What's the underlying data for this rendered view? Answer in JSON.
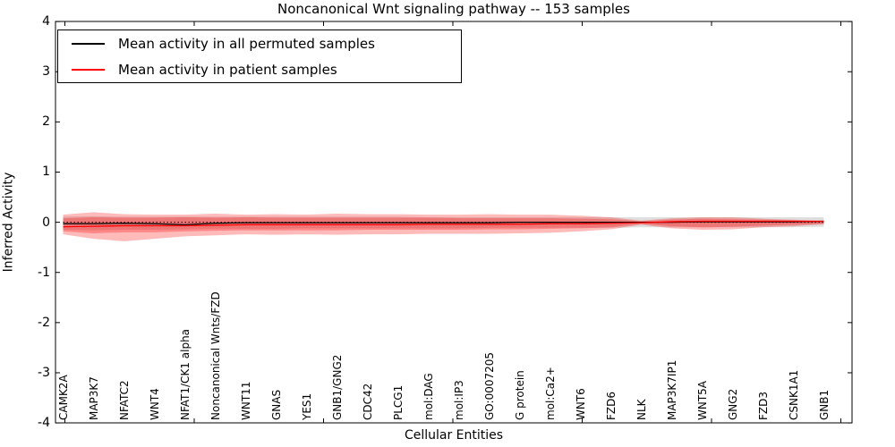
{
  "title": "Noncanonical Wnt signaling pathway -- 153 samples",
  "legend": {
    "items": [
      {
        "label": "Mean activity in all permuted samples",
        "color": "#000000"
      },
      {
        "label": "Mean activity in patient samples",
        "color": "#ff0000"
      }
    ]
  },
  "colors": {
    "background": "#ffffff",
    "axis": "#000000",
    "permuted_line": "#000000",
    "patient_line": "#ff0000",
    "permuted_band": "#808080",
    "patient_band": "#ff0000"
  },
  "chart_data": {
    "type": "line",
    "title": "Noncanonical Wnt signaling pathway -- 153 samples",
    "xlabel": "Cellular Entities",
    "ylabel": "Inferred Activity",
    "ylim": [
      -4,
      4
    ],
    "grid": false,
    "legend_position": "upper left",
    "zero_line": "dotted black line at y=0",
    "ytick_values": [
      4,
      3,
      2,
      1,
      0,
      -1,
      -2,
      -3,
      -4
    ],
    "ytick_labels": [
      "4",
      "3",
      "2",
      "1",
      "0",
      "-1",
      "-2",
      "-3",
      "-4"
    ],
    "categories": [
      "CAMK2A",
      "MAP3K7",
      "NFATC2",
      "WNT4",
      "NFAT1/CK1 alpha",
      "Noncanonical Wnts/FZD",
      "WNT11",
      "GNAS",
      "YES1",
      "GNB1/GNG2",
      "CDC42",
      "PLCG1",
      "mol:DAG",
      "mol:IP3",
      "GO:0007205",
      "G protein",
      "mol:Ca2+",
      "WNT6",
      "FZD6",
      "NLK",
      "MAP3K7IP1",
      "WNT5A",
      "GNG2",
      "FZD3",
      "CSNK1A1",
      "GNB1"
    ],
    "series": [
      {
        "name": "Mean activity in all permuted samples",
        "color": "#000000",
        "values": [
          -0.03,
          -0.03,
          -0.02,
          -0.03,
          -0.05,
          -0.02,
          -0.01,
          -0.01,
          -0.01,
          -0.01,
          -0.01,
          -0.01,
          -0.01,
          -0.01,
          -0.01,
          0,
          0,
          0,
          0,
          0,
          0,
          0.01,
          0.01,
          0.01,
          0.01,
          0.02
        ]
      },
      {
        "name": "Mean activity in patient samples",
        "color": "#ff0000",
        "values": [
          -0.09,
          -0.08,
          -0.07,
          -0.07,
          -0.07,
          -0.06,
          -0.05,
          -0.05,
          -0.05,
          -0.05,
          -0.05,
          -0.05,
          -0.04,
          -0.04,
          -0.04,
          -0.04,
          -0.03,
          -0.03,
          -0.02,
          -0.01,
          0.01,
          0.02,
          0.02,
          0.02,
          0.02,
          0.02
        ]
      }
    ],
    "bands": [
      {
        "name": "permuted-samples-std",
        "color": "#808080",
        "opacity": 0.25,
        "hi": [
          0.11,
          0.12,
          0.11,
          0.11,
          0.11,
          0.11,
          0.11,
          0.11,
          0.11,
          0.11,
          0.11,
          0.11,
          0.1,
          0.1,
          0.1,
          0.1,
          0.1,
          0.1,
          0.1,
          0.1,
          0.1,
          0.1,
          0.1,
          0.1,
          0.1,
          0.1
        ],
        "lo": [
          -0.15,
          -0.16,
          -0.15,
          -0.15,
          -0.14,
          -0.13,
          -0.13,
          -0.13,
          -0.12,
          -0.12,
          -0.12,
          -0.12,
          -0.12,
          -0.12,
          -0.11,
          -0.11,
          -0.11,
          -0.11,
          -0.11,
          -0.1,
          -0.1,
          -0.1,
          -0.1,
          -0.1,
          -0.1,
          -0.09
        ]
      },
      {
        "name": "patient-samples-std-outer",
        "color": "#ff0000",
        "opacity": 0.27,
        "hi": [
          0.15,
          0.2,
          0.16,
          0.15,
          0.15,
          0.17,
          0.15,
          0.16,
          0.15,
          0.17,
          0.16,
          0.16,
          0.15,
          0.15,
          0.16,
          0.15,
          0.15,
          0.13,
          0.1,
          0.03,
          0.08,
          0.1,
          0.1,
          0.07,
          0.05,
          0.03
        ],
        "lo": [
          -0.24,
          -0.33,
          -0.38,
          -0.33,
          -0.28,
          -0.26,
          -0.24,
          -0.25,
          -0.24,
          -0.25,
          -0.24,
          -0.24,
          -0.23,
          -0.23,
          -0.23,
          -0.22,
          -0.21,
          -0.18,
          -0.14,
          -0.05,
          -0.12,
          -0.15,
          -0.14,
          -0.1,
          -0.08,
          -0.04
        ]
      },
      {
        "name": "patient-samples-std-inner",
        "color": "#ff0000",
        "opacity": 0.27,
        "hi": [
          0.08,
          0.1,
          0.09,
          0.09,
          0.1,
          0.09,
          0.1,
          0.09,
          0.09,
          0.09,
          0.09,
          0.09,
          0.09,
          0.08,
          0.08,
          0.08,
          0.08,
          0.07,
          0.06,
          0.02,
          0.05,
          0.07,
          0.06,
          0.05,
          0.04,
          0.02
        ],
        "lo": [
          -0.18,
          -0.22,
          -0.2,
          -0.2,
          -0.18,
          -0.17,
          -0.16,
          -0.16,
          -0.16,
          -0.16,
          -0.15,
          -0.15,
          -0.15,
          -0.15,
          -0.14,
          -0.14,
          -0.13,
          -0.12,
          -0.1,
          -0.03,
          -0.08,
          -0.1,
          -0.09,
          -0.07,
          -0.05,
          -0.03
        ]
      }
    ]
  }
}
